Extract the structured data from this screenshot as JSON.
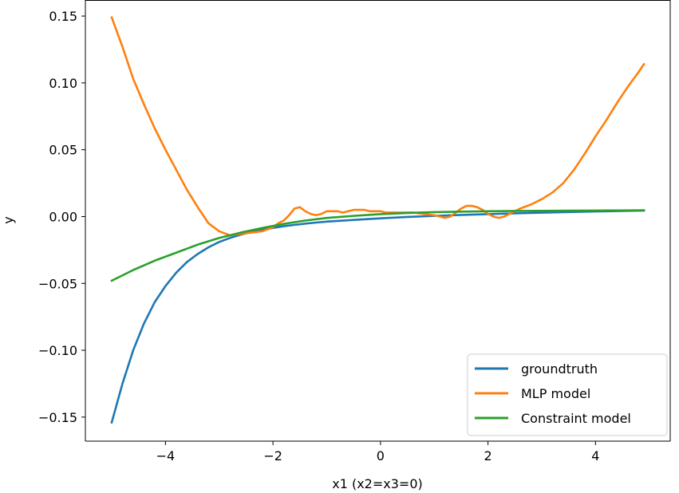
{
  "chart_data": {
    "type": "line",
    "title": "",
    "xlabel": "x1 (x2=x3=0)",
    "ylabel": "y",
    "xlim": [
      -5.49,
      5.39
    ],
    "ylim": [
      -0.168,
      0.162
    ],
    "xticks": [
      -4,
      -2,
      0,
      2,
      4
    ],
    "xtick_labels": [
      "−4",
      "−2",
      "0",
      "2",
      "4"
    ],
    "yticks": [
      -0.15,
      -0.1,
      -0.05,
      0.0,
      0.05,
      0.1,
      0.15
    ],
    "ytick_labels": [
      "−0.15",
      "−0.10",
      "−0.05",
      "0.00",
      "0.05",
      "0.10",
      "0.15"
    ],
    "grid": false,
    "legend_position": "lower-right",
    "series": [
      {
        "name": "groundtruth",
        "color": "#1f77b4",
        "x": [
          -5.0,
          -4.8,
          -4.6,
          -4.4,
          -4.2,
          -4.0,
          -3.8,
          -3.6,
          -3.4,
          -3.2,
          -3.0,
          -2.8,
          -2.6,
          -2.4,
          -2.2,
          -2.0,
          -1.8,
          -1.6,
          -1.4,
          -1.2,
          -1.0,
          -0.5,
          0.0,
          0.5,
          1.0,
          1.5,
          2.0,
          2.5,
          3.0,
          3.5,
          4.0,
          4.5,
          4.9
        ],
        "y": [
          -0.154,
          -0.125,
          -0.1,
          -0.08,
          -0.064,
          -0.052,
          -0.042,
          -0.034,
          -0.028,
          -0.023,
          -0.019,
          -0.016,
          -0.0135,
          -0.0115,
          -0.0098,
          -0.0085,
          -0.0072,
          -0.0062,
          -0.0053,
          -0.0045,
          -0.0038,
          -0.0025,
          -0.0013,
          -0.0003,
          0.0005,
          0.0012,
          0.0018,
          0.0024,
          0.0029,
          0.0034,
          0.0038,
          0.0042,
          0.0045
        ]
      },
      {
        "name": "MLP model",
        "color": "#ff7f0e",
        "x": [
          -5.0,
          -4.8,
          -4.6,
          -4.4,
          -4.2,
          -4.0,
          -3.8,
          -3.6,
          -3.4,
          -3.2,
          -3.0,
          -2.8,
          -2.6,
          -2.4,
          -2.2,
          -2.0,
          -1.9,
          -1.8,
          -1.7,
          -1.6,
          -1.5,
          -1.4,
          -1.3,
          -1.2,
          -1.1,
          -1.0,
          -0.9,
          -0.8,
          -0.7,
          -0.6,
          -0.5,
          -0.4,
          -0.3,
          -0.2,
          -0.1,
          0.0,
          0.1,
          0.2,
          0.4,
          0.6,
          0.8,
          1.0,
          1.2,
          1.3,
          1.4,
          1.5,
          1.6,
          1.7,
          1.8,
          1.9,
          2.0,
          2.1,
          2.2,
          2.3,
          2.4,
          2.5,
          2.6,
          2.8,
          3.0,
          3.2,
          3.4,
          3.6,
          3.8,
          4.0,
          4.2,
          4.4,
          4.6,
          4.8,
          4.9
        ],
        "y": [
          0.149,
          0.127,
          0.103,
          0.084,
          0.066,
          0.05,
          0.035,
          0.02,
          0.007,
          -0.005,
          -0.011,
          -0.014,
          -0.013,
          -0.012,
          -0.011,
          -0.008,
          -0.005,
          -0.003,
          0.001,
          0.006,
          0.007,
          0.004,
          0.002,
          0.001,
          0.002,
          0.004,
          0.004,
          0.004,
          0.003,
          0.004,
          0.005,
          0.005,
          0.005,
          0.004,
          0.004,
          0.004,
          0.003,
          0.003,
          0.003,
          0.003,
          0.002,
          0.001,
          -0.001,
          0.0,
          0.003,
          0.006,
          0.008,
          0.008,
          0.007,
          0.005,
          0.002,
          0.0,
          -0.001,
          0.0,
          0.002,
          0.004,
          0.006,
          0.009,
          0.013,
          0.018,
          0.025,
          0.035,
          0.047,
          0.06,
          0.072,
          0.085,
          0.097,
          0.108,
          0.114
        ]
      },
      {
        "name": "Constraint model",
        "color": "#2ca02c",
        "x": [
          -5.0,
          -4.6,
          -4.2,
          -3.8,
          -3.4,
          -3.0,
          -2.6,
          -2.2,
          -1.8,
          -1.4,
          -1.0,
          -0.5,
          0.0,
          0.5,
          1.0,
          1.5,
          2.0,
          2.5,
          3.0,
          3.5,
          4.0,
          4.5,
          4.9
        ],
        "y": [
          -0.048,
          -0.04,
          -0.033,
          -0.027,
          -0.021,
          -0.016,
          -0.012,
          -0.0085,
          -0.0055,
          -0.003,
          -0.001,
          0.0005,
          0.0018,
          0.0027,
          0.0033,
          0.0037,
          0.004,
          0.0042,
          0.0043,
          0.0044,
          0.0045,
          0.0046,
          0.0047
        ]
      }
    ]
  }
}
